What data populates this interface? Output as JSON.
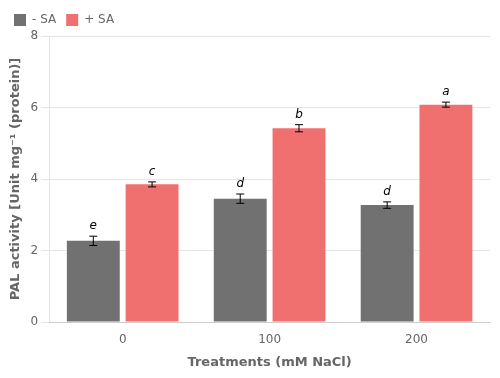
{
  "chart_data": {
    "type": "bar",
    "categories": [
      "0",
      "100",
      "200"
    ],
    "xlabel": "Treatments (mM NaCl)",
    "ylabel": "PAL activity [Unit mg⁻¹ (protein)]",
    "series": [
      {
        "name": "- SA",
        "color": "#717171",
        "values": [
          2.27,
          3.45,
          3.27
        ],
        "errors": [
          0.13,
          0.13,
          0.09
        ],
        "letters": [
          "e",
          "d",
          "d"
        ]
      },
      {
        "name": "+ SA",
        "color": "#F07070",
        "values": [
          3.85,
          5.42,
          6.08
        ],
        "errors": [
          0.07,
          0.1,
          0.07
        ],
        "letters": [
          "c",
          "b",
          "a"
        ]
      }
    ],
    "ylim": [
      0,
      8
    ],
    "yticks": [
      0,
      2,
      4,
      6,
      8
    ],
    "grid": "y",
    "legend": "upper left"
  }
}
